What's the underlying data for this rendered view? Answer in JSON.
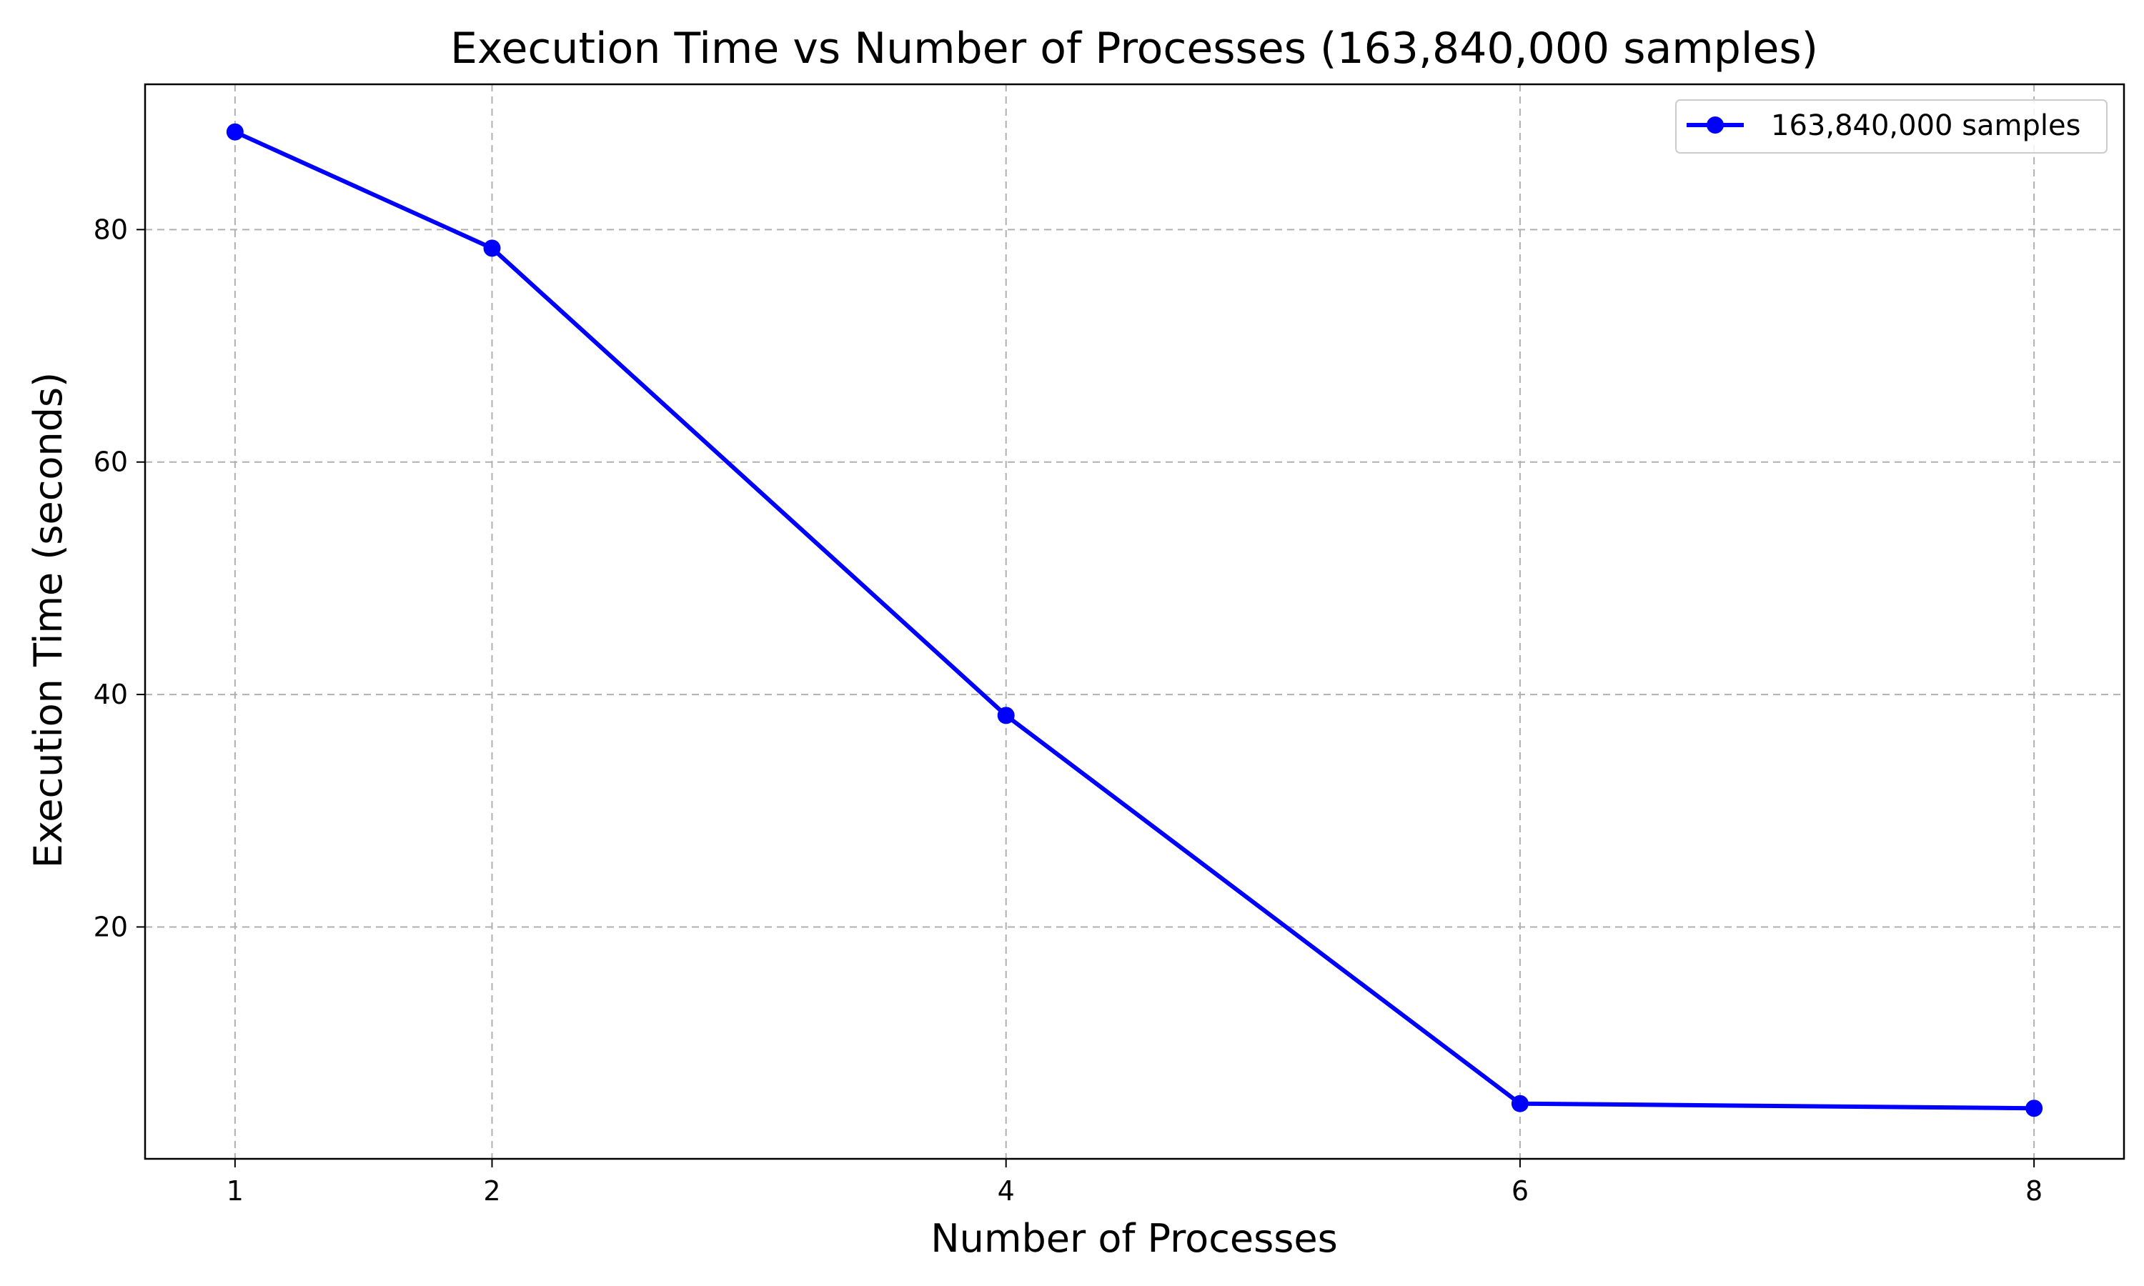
{
  "chart_data": {
    "type": "line",
    "title": "Execution Time vs Number of Processes (163,840,000 samples)",
    "xlabel": "Number of Processes",
    "ylabel": "Execution Time (seconds)",
    "x_ticks": [
      1,
      2,
      4,
      6,
      8
    ],
    "y_ticks": [
      20,
      40,
      60,
      80
    ],
    "xlim": [
      0.65,
      8.35
    ],
    "ylim": [
      0.05,
      92.5
    ],
    "grid": true,
    "legend_position": "top-right",
    "series": [
      {
        "name": "163,840,000 samples",
        "color": "#0000ff",
        "marker": "circle",
        "x": [
          1,
          2,
          4,
          6,
          8
        ],
        "y": [
          88.4,
          78.4,
          38.2,
          4.8,
          4.4
        ]
      }
    ]
  }
}
